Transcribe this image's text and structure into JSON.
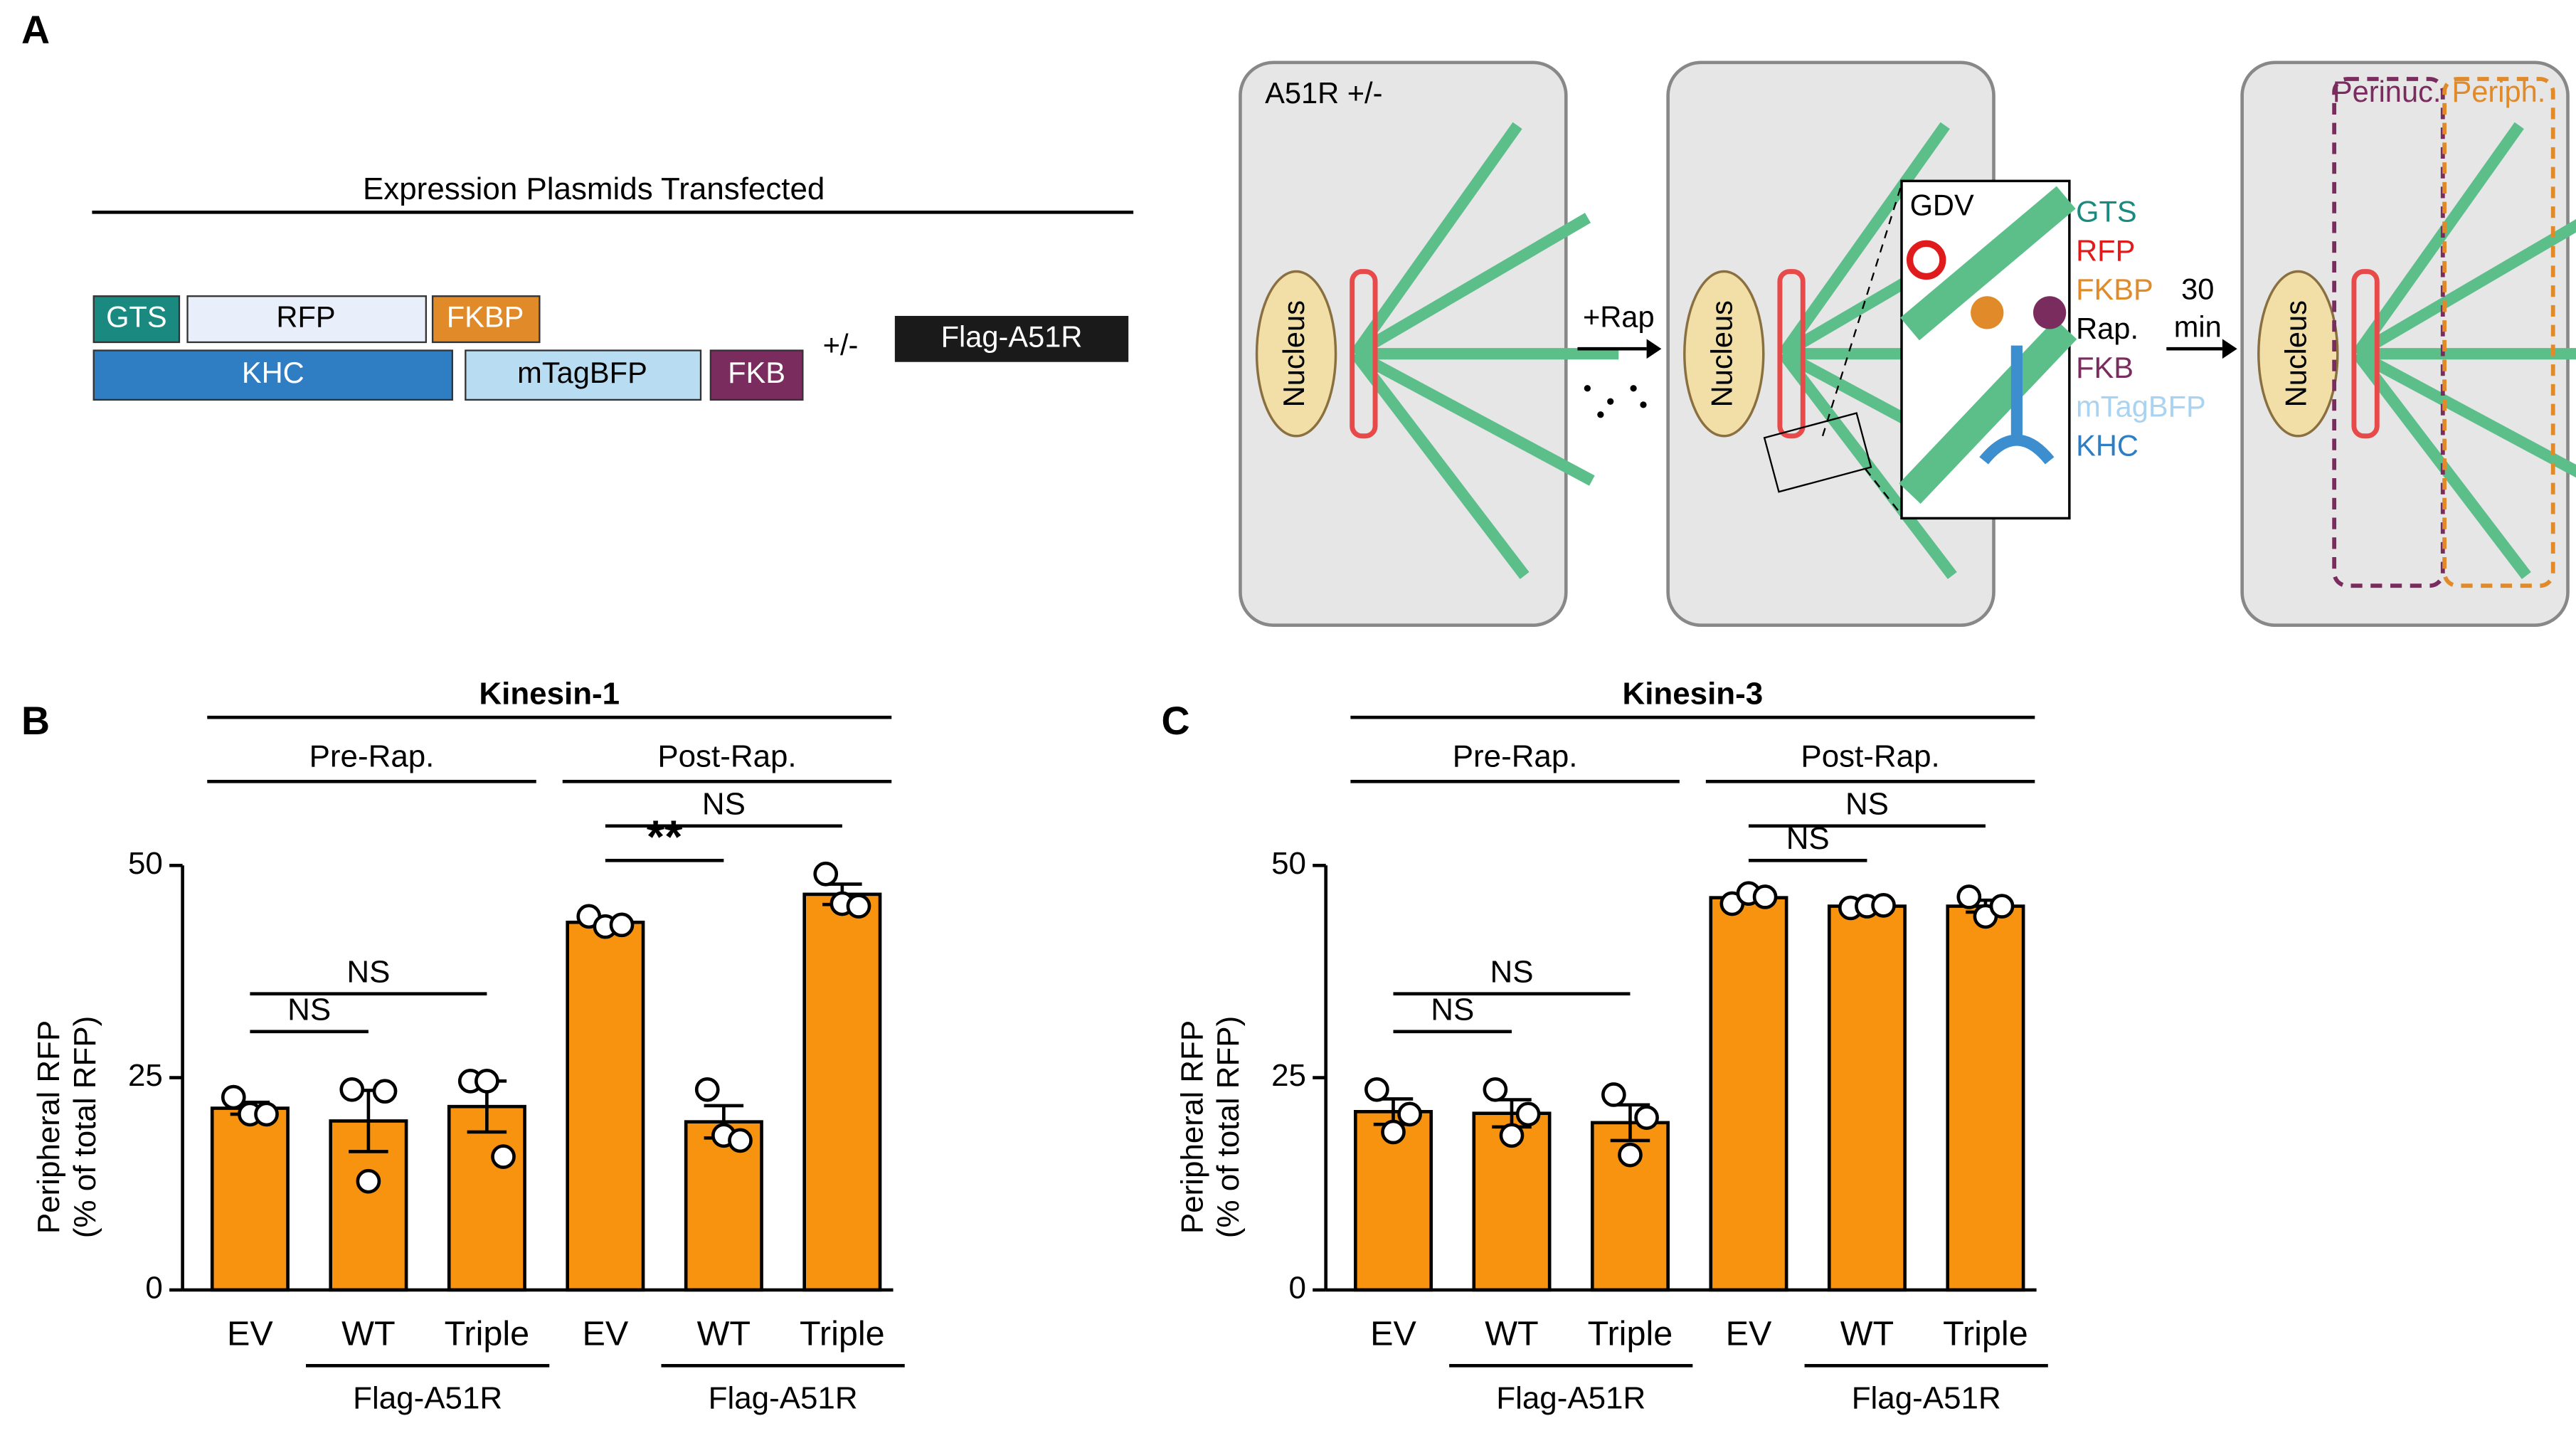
{
  "panels": [
    "A",
    "B",
    "C"
  ],
  "plasmid_diagram": {
    "title": "Expression Plasmids Transfected",
    "row1": [
      "GTS",
      "RFP",
      "FKBP"
    ],
    "row2": [
      "KHC",
      "mTagBFP",
      "FKB"
    ],
    "optional": "+/-",
    "extra": "Flag-A51R"
  },
  "cell_diagram": {
    "condition": "A51R +/-",
    "nucleus": "Nucleus",
    "treatment": "+Rap",
    "time": [
      "30",
      "min"
    ],
    "inset": "GDV",
    "legend": [
      "GTS",
      "RFP",
      "FKBP",
      "Rap.",
      "FKB",
      "mTagBFP",
      "KHC"
    ],
    "regions": [
      "Perinuc.",
      "Periph."
    ]
  },
  "chart_data": [
    {
      "type": "bar",
      "title": "Kinesin-1",
      "ylabel": [
        "Peripheral RFP",
        "(% of total RFP)"
      ],
      "categories": [
        "EV",
        "WT",
        "Triple",
        "EV",
        "WT",
        "Triple"
      ],
      "values": [
        21.4,
        19.9,
        21.6,
        43.3,
        19.8,
        46.6
      ],
      "errors": [
        0.7,
        3.6,
        3.0,
        0.4,
        1.9,
        1.2
      ],
      "points": [
        [
          22.7,
          20.7,
          20.7
        ],
        [
          23.6,
          12.8,
          23.4
        ],
        [
          24.6,
          24.6,
          15.7
        ],
        [
          44,
          42.8,
          43
        ],
        [
          23.6,
          18.2,
          17.6
        ],
        [
          49,
          45.5,
          45.2
        ]
      ],
      "color": "#f7930f",
      "ylim": [
        0,
        50
      ],
      "yticks": [
        0,
        25,
        50
      ],
      "groups": [
        {
          "label": "Pre-Rap.",
          "categories": [
            0,
            2
          ]
        },
        {
          "label": "Post-Rap.",
          "categories": [
            3,
            5
          ]
        }
      ],
      "subgroups": [
        {
          "label": "Flag-A51R",
          "categories": [
            1,
            2
          ]
        },
        {
          "label": "Flag-A51R",
          "categories": [
            4,
            5
          ]
        }
      ],
      "comparisons": [
        {
          "categories": [
            0,
            1
          ],
          "label": "NS"
        },
        {
          "categories": [
            0,
            2
          ],
          "label": "NS"
        },
        {
          "categories": [
            3,
            4
          ],
          "label": "**"
        },
        {
          "categories": [
            3,
            5
          ],
          "label": "NS"
        }
      ]
    },
    {
      "type": "bar",
      "title": "Kinesin-3",
      "ylabel": [
        "Peripheral RFP",
        "(% of total RFP)"
      ],
      "categories": [
        "EV",
        "WT",
        "Triple",
        "EV",
        "WT",
        "Triple"
      ],
      "values": [
        21,
        20.8,
        19.7,
        46.2,
        45.2,
        45.2
      ],
      "errors": [
        1.5,
        1.6,
        2.1,
        0.4,
        0.1,
        0.7
      ],
      "points": [
        [
          23.6,
          18.6,
          20.7
        ],
        [
          23.6,
          18.2,
          20.7
        ],
        [
          23,
          15.9,
          20.3
        ],
        [
          45.5,
          46.7,
          46.3
        ],
        [
          45,
          45.2,
          45.3
        ],
        [
          46.3,
          44,
          45.2
        ]
      ],
      "color": "#f7930f",
      "ylim": [
        0,
        50
      ],
      "yticks": [
        0,
        25,
        50
      ],
      "groups": [
        {
          "label": "Pre-Rap.",
          "categories": [
            0,
            2
          ]
        },
        {
          "label": "Post-Rap.",
          "categories": [
            3,
            5
          ]
        }
      ],
      "subgroups": [
        {
          "label": "Flag-A51R",
          "categories": [
            1,
            2
          ]
        },
        {
          "label": "Flag-A51R",
          "categories": [
            4,
            5
          ]
        }
      ],
      "comparisons": [
        {
          "categories": [
            0,
            1
          ],
          "label": "NS"
        },
        {
          "categories": [
            0,
            2
          ],
          "label": "NS"
        },
        {
          "categories": [
            3,
            4
          ],
          "label": "NS"
        },
        {
          "categories": [
            3,
            5
          ],
          "label": "NS"
        }
      ]
    }
  ]
}
